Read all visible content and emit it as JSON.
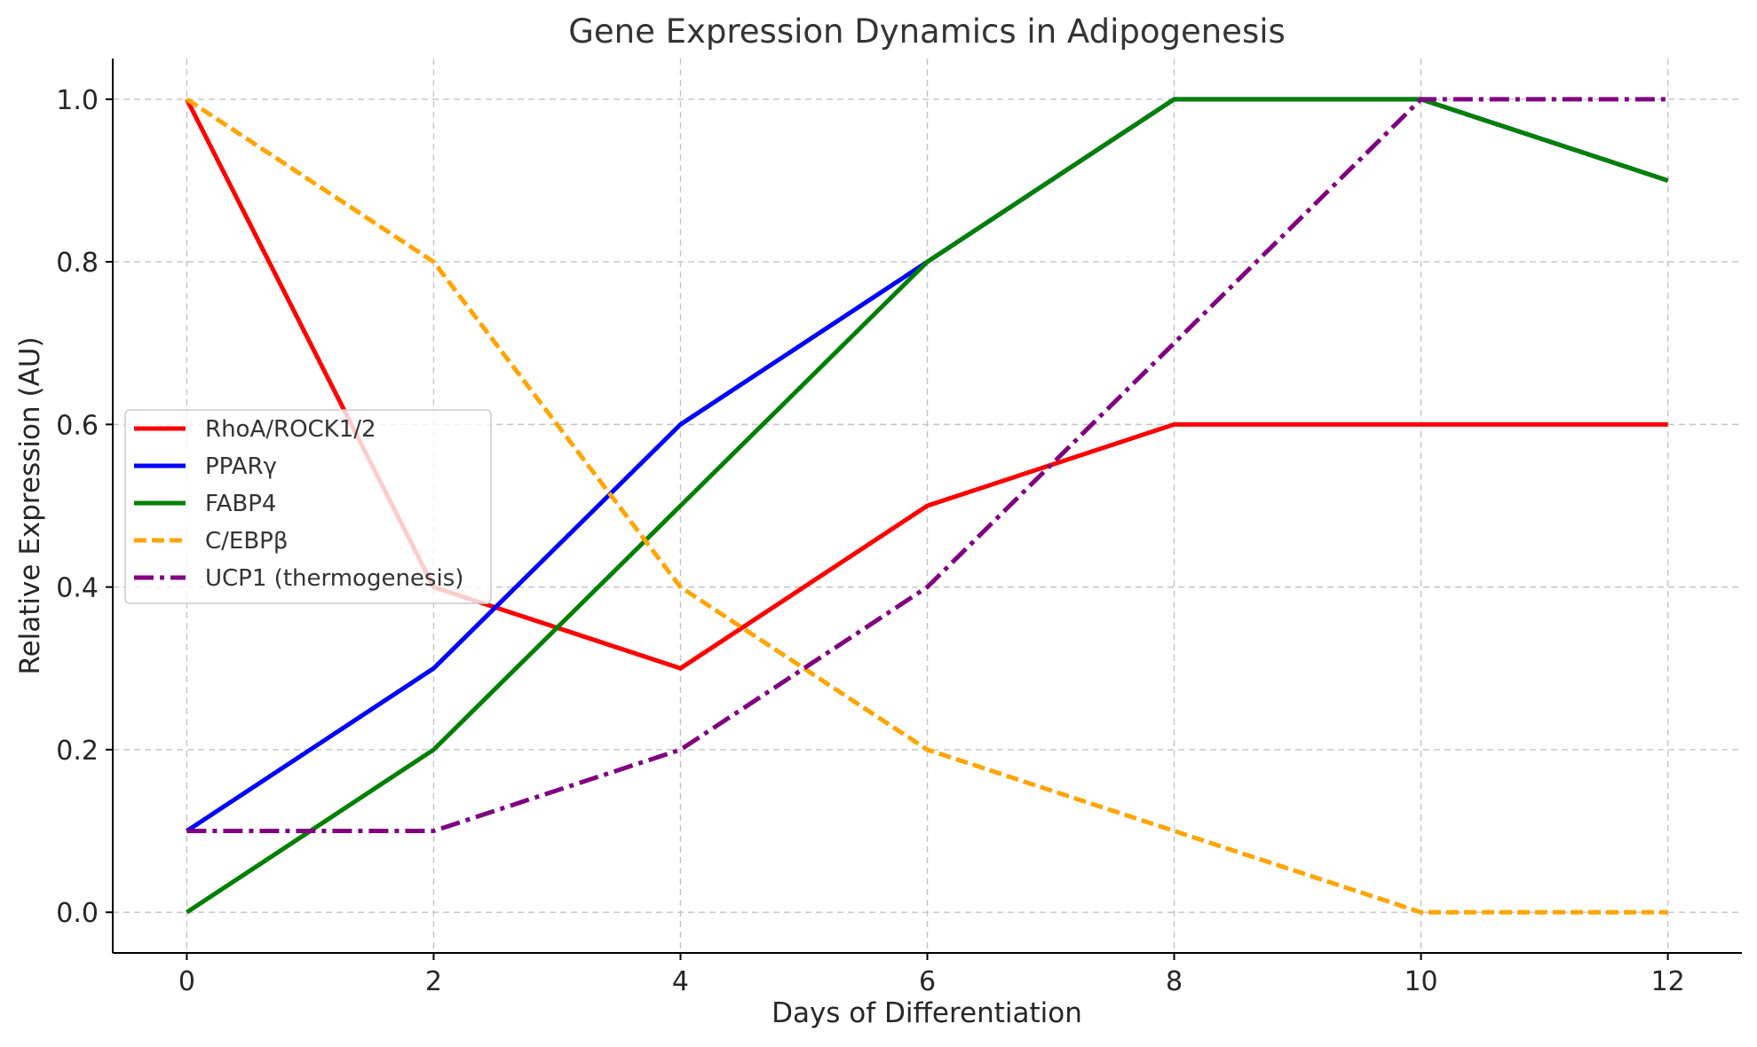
{
  "chart_data": {
    "type": "line",
    "title": "Gene Expression Dynamics in Adipogenesis",
    "xlabel": "Days of Differentiation",
    "ylabel": "Relative Expression (AU)",
    "x": [
      0,
      2,
      4,
      6,
      8,
      10,
      12
    ],
    "xlim": [
      -0.6,
      12.6
    ],
    "ylim": [
      -0.05,
      1.05
    ],
    "xticks": [
      "0",
      "2",
      "4",
      "6",
      "8",
      "10",
      "12"
    ],
    "yticks": [
      "0.0",
      "0.2",
      "0.4",
      "0.6",
      "0.8",
      "1.0"
    ],
    "grid": true,
    "legend_position": "center-left",
    "series": [
      {
        "name": "RhoA/ROCK1/2",
        "values": [
          1.0,
          0.4,
          0.3,
          0.5,
          0.6,
          0.6,
          0.6
        ],
        "color": "#ff0000",
        "dash": "solid"
      },
      {
        "name": "PPARγ",
        "values": [
          0.1,
          0.3,
          0.6,
          0.8,
          1.0,
          1.0,
          0.9
        ],
        "color": "#0000ff",
        "dash": "solid"
      },
      {
        "name": "FABP4",
        "values": [
          0.0,
          0.2,
          0.5,
          0.8,
          1.0,
          1.0,
          0.9
        ],
        "color": "#008000",
        "dash": "solid"
      },
      {
        "name": "C/EBPβ",
        "values": [
          1.0,
          0.8,
          0.4,
          0.2,
          0.1,
          0.0,
          0.0
        ],
        "color": "#ffa500",
        "dash": "dashed"
      },
      {
        "name": "UCP1 (thermogenesis)",
        "values": [
          0.1,
          0.1,
          0.2,
          0.4,
          0.7,
          1.0,
          1.0
        ],
        "color": "#800080",
        "dash": "dashdot"
      }
    ]
  }
}
